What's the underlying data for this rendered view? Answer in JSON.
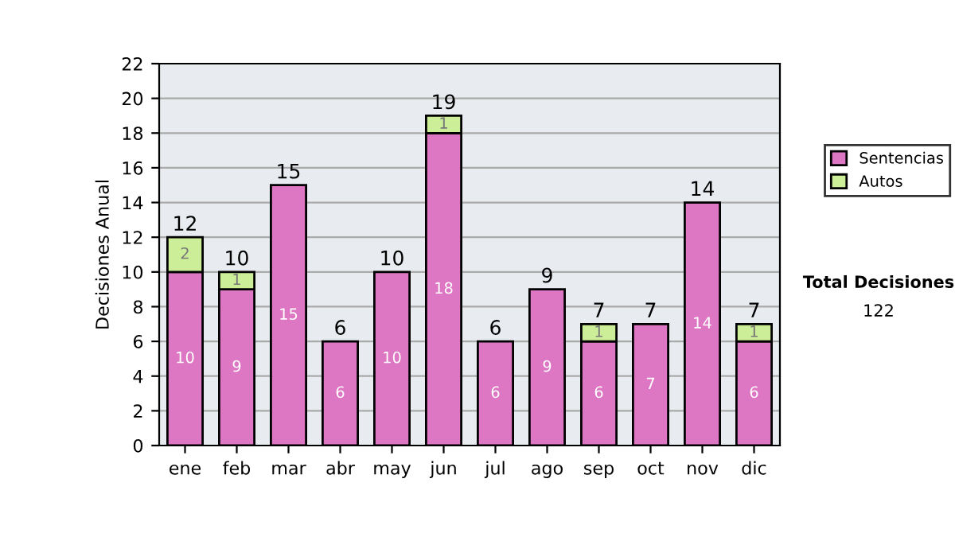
{
  "chart_data": {
    "type": "bar",
    "ylabel": "Decisiones Anual",
    "categories": [
      "ene",
      "feb",
      "mar",
      "abr",
      "may",
      "jun",
      "jul",
      "ago",
      "sep",
      "oct",
      "nov",
      "dic"
    ],
    "stacked": true,
    "series": [
      {
        "name": "Sentencias",
        "color": "#dd77c4",
        "values": [
          10,
          9,
          15,
          6,
          10,
          18,
          6,
          9,
          6,
          7,
          14,
          6
        ],
        "value_labels": [
          "10",
          "9",
          "15",
          "6",
          "10",
          "18",
          "6",
          "9",
          "6",
          "7",
          "14",
          "6"
        ]
      },
      {
        "name": "Autos",
        "color": "#ccee99",
        "values": [
          2,
          1,
          0,
          0,
          0,
          1,
          0,
          0,
          1,
          0,
          0,
          1
        ],
        "value_labels": [
          "2",
          "1",
          null,
          null,
          null,
          "1",
          null,
          null,
          "1",
          null,
          null,
          "1"
        ]
      }
    ],
    "totals": [
      "12",
      "10",
      "15",
      "6",
      "10",
      "19",
      "6",
      "9",
      "7",
      "7",
      "14",
      "7"
    ],
    "ylim": [
      0,
      22
    ],
    "yticks": [
      0,
      2,
      4,
      6,
      8,
      10,
      12,
      14,
      16,
      18,
      20,
      22
    ],
    "grid": "y",
    "legend": "right",
    "annotations": [
      "Total Decisiones",
      "122"
    ]
  }
}
